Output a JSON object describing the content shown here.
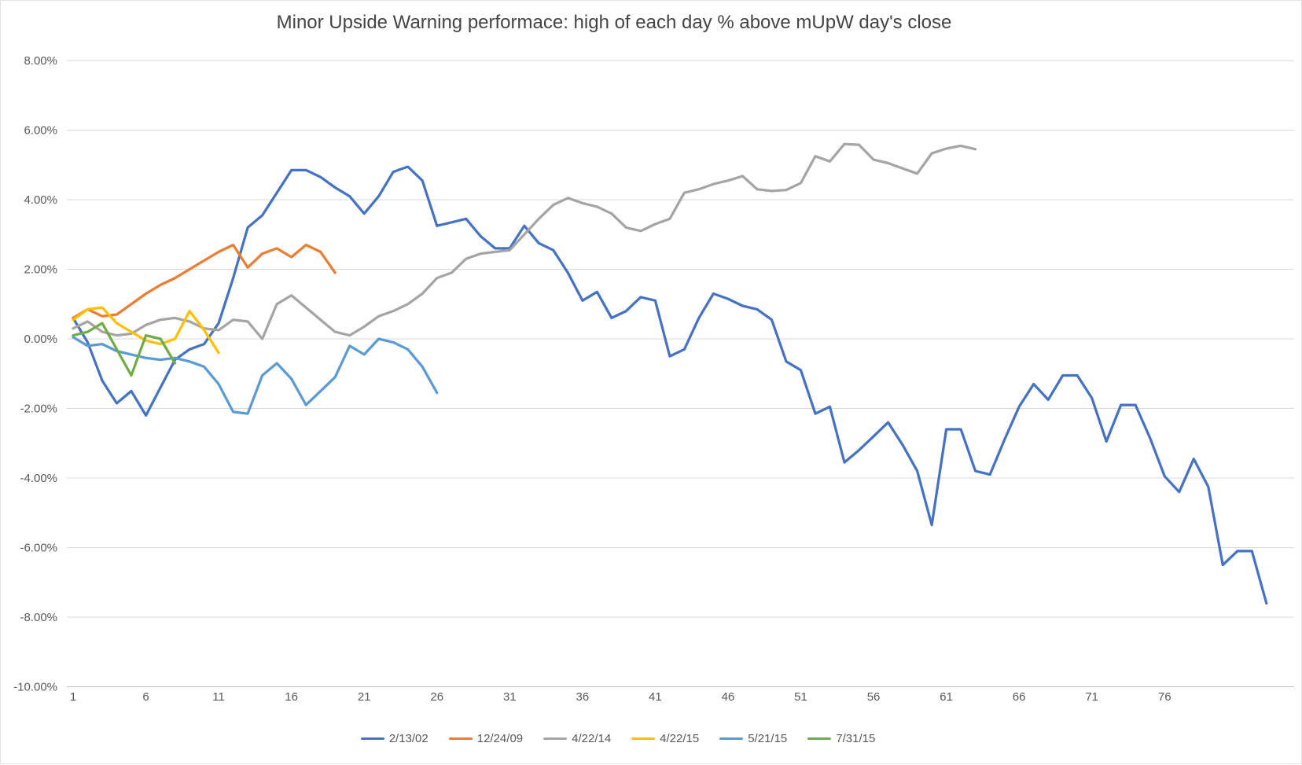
{
  "chart": {
    "title": "Minor Upside Warning performace: high of each day % above mUpW day's close"
  },
  "chart_data": {
    "type": "line",
    "title": "Minor Upside Warning performace: high of each day % above mUpW day's close",
    "xlabel": "",
    "ylabel": "",
    "x_axis": {
      "min": 1,
      "max": 84,
      "tick_labels": [
        1,
        6,
        11,
        16,
        21,
        26,
        31,
        36,
        41,
        46,
        51,
        56,
        61,
        66,
        71,
        76
      ]
    },
    "y_axis": {
      "min": -10,
      "max": 8,
      "step": 2,
      "unit": "percent",
      "ticks": [
        {
          "label": "8.00%",
          "value": 8
        },
        {
          "label": "6.00%",
          "value": 6
        },
        {
          "label": "4.00%",
          "value": 4
        },
        {
          "label": "2.00%",
          "value": 2
        },
        {
          "label": "0.00%",
          "value": 0
        },
        {
          "label": "-2.00%",
          "value": -2
        },
        {
          "label": "-4.00%",
          "value": -4
        },
        {
          "label": "-6.00%",
          "value": -6
        },
        {
          "label": "-8.00%",
          "value": -8
        },
        {
          "label": "-10.00%",
          "value": -10
        }
      ]
    },
    "grid": true,
    "legend_position": "bottom",
    "series": [
      {
        "name": "2/13/02",
        "color": "#4472C4",
        "values": [
          0.6,
          -0.1,
          -1.2,
          -1.85,
          -1.5,
          -2.2,
          -1.4,
          -0.6,
          -0.3,
          -0.15,
          0.45,
          1.75,
          3.2,
          3.55,
          4.2,
          4.85,
          4.85,
          4.65,
          4.35,
          4.1,
          3.6,
          4.1,
          4.8,
          4.95,
          4.55,
          3.25,
          3.35,
          3.45,
          2.95,
          2.6,
          2.6,
          3.25,
          2.75,
          2.55,
          1.9,
          1.1,
          1.35,
          0.6,
          0.8,
          1.2,
          1.1,
          -0.5,
          -0.3,
          0.6,
          1.3,
          1.15,
          0.95,
          0.85,
          0.55,
          -0.65,
          -0.9,
          -2.15,
          -1.95,
          -3.55,
          -3.2,
          -2.8,
          -2.4,
          -3.05,
          -3.8,
          -5.35,
          -2.6,
          -2.6,
          -3.8,
          -3.9,
          -2.9,
          -1.95,
          -1.3,
          -1.75,
          -1.05,
          -1.05,
          -1.7,
          -2.95,
          -1.9,
          -1.9,
          -2.85,
          -3.95,
          -4.4,
          -3.45,
          -4.25,
          -6.5,
          -6.1,
          -6.1,
          -7.6
        ]
      },
      {
        "name": "12/24/09",
        "color": "#ED7D31",
        "values": [
          0.6,
          0.85,
          0.65,
          0.7,
          1.0,
          1.3,
          1.55,
          1.75,
          2.0,
          2.25,
          2.5,
          2.7,
          2.05,
          2.45,
          2.6,
          2.35,
          2.7,
          2.5,
          1.9
        ]
      },
      {
        "name": "4/22/14",
        "color": "#A5A5A5",
        "values": [
          0.3,
          0.5,
          0.2,
          0.1,
          0.15,
          0.4,
          0.55,
          0.6,
          0.5,
          0.3,
          0.25,
          0.55,
          0.5,
          0.0,
          1.0,
          1.25,
          0.9,
          0.55,
          0.2,
          0.1,
          0.35,
          0.65,
          0.8,
          1.0,
          1.3,
          1.75,
          1.9,
          2.3,
          2.45,
          2.5,
          2.55,
          3.0,
          3.45,
          3.85,
          4.05,
          3.9,
          3.8,
          3.6,
          3.2,
          3.1,
          3.3,
          3.45,
          4.2,
          4.3,
          4.45,
          4.55,
          4.68,
          4.3,
          4.25,
          4.28,
          4.48,
          5.25,
          5.1,
          5.6,
          5.58,
          5.15,
          5.05,
          4.9,
          4.75,
          5.33,
          5.47,
          5.55,
          5.45
        ]
      },
      {
        "name": "4/22/15",
        "color": "#FFC000",
        "values": [
          0.55,
          0.85,
          0.9,
          0.45,
          0.2,
          -0.05,
          -0.15,
          0.0,
          0.8,
          0.25,
          -0.4
        ]
      },
      {
        "name": "5/21/15",
        "color": "#5B9BD5",
        "values": [
          0.05,
          -0.2,
          -0.15,
          -0.35,
          -0.45,
          -0.55,
          -0.6,
          -0.55,
          -0.65,
          -0.8,
          -1.3,
          -2.1,
          -2.15,
          -1.05,
          -0.7,
          -1.15,
          -1.9,
          -1.5,
          -1.1,
          -0.2,
          -0.45,
          0.0,
          -0.1,
          -0.3,
          -0.8,
          -1.55
        ]
      },
      {
        "name": "7/31/15",
        "color": "#70AD47",
        "values": [
          0.1,
          0.2,
          0.45,
          -0.3,
          -1.05,
          0.1,
          0.0,
          -0.7
        ]
      }
    ]
  },
  "colors": {
    "background": "#ffffff",
    "gridline": "#d9d9d9",
    "axis_line": "#bfbfbf",
    "tick_text": "#595959",
    "title_text": "#444444"
  }
}
